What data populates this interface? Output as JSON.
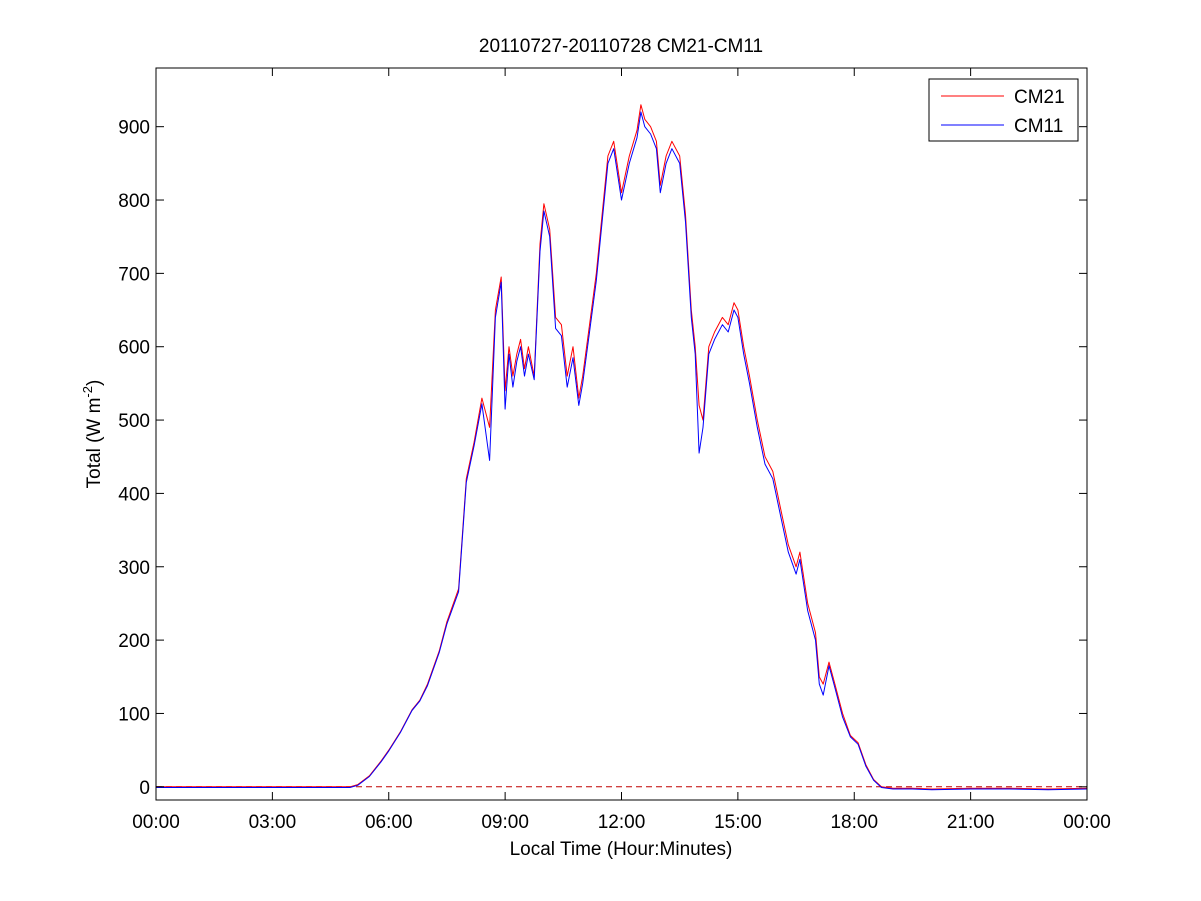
{
  "chart_data": {
    "type": "line",
    "title": "20110727-20110728 CM21-CM11",
    "xlabel": "Local Time (Hour:Minutes)",
    "ylabel_main": "Total (W m",
    "ylabel_sup": "-2",
    "ylabel_close": ")",
    "xlim": [
      0,
      24
    ],
    "ylim": [
      -18,
      980
    ],
    "xticks": [
      {
        "value": 0,
        "label": "00:00"
      },
      {
        "value": 3,
        "label": "03:00"
      },
      {
        "value": 6,
        "label": "06:00"
      },
      {
        "value": 9,
        "label": "09:00"
      },
      {
        "value": 12,
        "label": "12:00"
      },
      {
        "value": 15,
        "label": "15:00"
      },
      {
        "value": 18,
        "label": "18:00"
      },
      {
        "value": 21,
        "label": "21:00"
      },
      {
        "value": 24,
        "label": "00:00"
      }
    ],
    "yticks": [
      {
        "value": 0,
        "label": "0"
      },
      {
        "value": 100,
        "label": "100"
      },
      {
        "value": 200,
        "label": "200"
      },
      {
        "value": 300,
        "label": "300"
      },
      {
        "value": 400,
        "label": "400"
      },
      {
        "value": 500,
        "label": "500"
      },
      {
        "value": 600,
        "label": "600"
      },
      {
        "value": 700,
        "label": "700"
      },
      {
        "value": 800,
        "label": "800"
      },
      {
        "value": 900,
        "label": "900"
      }
    ],
    "grid": false,
    "legend_position": "top-right",
    "reference_line": {
      "y": 0,
      "style": "dashed",
      "color": "#c00000"
    },
    "x": [
      0,
      5.0,
      5.2,
      5.5,
      5.8,
      6.0,
      6.3,
      6.6,
      6.8,
      7.0,
      7.3,
      7.5,
      7.8,
      8.0,
      8.2,
      8.4,
      8.6,
      8.75,
      8.9,
      9.0,
      9.1,
      9.2,
      9.3,
      9.4,
      9.5,
      9.6,
      9.75,
      9.9,
      10.0,
      10.15,
      10.3,
      10.45,
      10.6,
      10.75,
      10.9,
      11.0,
      11.2,
      11.35,
      11.5,
      11.65,
      11.8,
      12.0,
      12.2,
      12.4,
      12.5,
      12.6,
      12.75,
      12.9,
      13.0,
      13.15,
      13.3,
      13.5,
      13.65,
      13.8,
      13.9,
      14.0,
      14.1,
      14.25,
      14.4,
      14.6,
      14.75,
      14.9,
      15.0,
      15.15,
      15.3,
      15.5,
      15.7,
      15.9,
      16.1,
      16.3,
      16.5,
      16.6,
      16.8,
      17.0,
      17.1,
      17.2,
      17.35,
      17.5,
      17.7,
      17.9,
      18.1,
      18.3,
      18.5,
      18.7,
      19.0,
      19.5,
      20.0,
      21.0,
      22.0,
      23.0,
      24.0
    ],
    "series": [
      {
        "name": "CM21",
        "color": "#ff0000",
        "values": [
          0,
          0,
          3,
          15,
          35,
          50,
          75,
          105,
          118,
          140,
          185,
          225,
          270,
          420,
          470,
          530,
          490,
          650,
          695,
          540,
          600,
          560,
          590,
          610,
          570,
          600,
          560,
          740,
          795,
          760,
          640,
          630,
          560,
          600,
          530,
          560,
          640,
          700,
          780,
          860,
          880,
          810,
          860,
          895,
          930,
          910,
          900,
          880,
          820,
          860,
          880,
          860,
          780,
          650,
          600,
          520,
          500,
          600,
          620,
          640,
          630,
          660,
          650,
          600,
          560,
          500,
          450,
          430,
          380,
          330,
          300,
          320,
          250,
          210,
          150,
          140,
          170,
          140,
          100,
          70,
          60,
          30,
          10,
          0,
          -2,
          -2,
          -3,
          -2,
          -2,
          -3,
          -2
        ]
      },
      {
        "name": "CM11",
        "color": "#0000ff",
        "values": [
          -1,
          -1,
          2,
          14,
          34,
          49,
          74,
          104,
          117,
          138,
          183,
          222,
          266,
          415,
          465,
          522,
          445,
          640,
          688,
          515,
          590,
          545,
          580,
          600,
          560,
          590,
          555,
          730,
          785,
          750,
          625,
          615,
          545,
          585,
          520,
          550,
          630,
          690,
          770,
          850,
          870,
          800,
          850,
          885,
          920,
          900,
          890,
          870,
          810,
          850,
          870,
          850,
          770,
          640,
          590,
          455,
          490,
          590,
          610,
          630,
          620,
          650,
          640,
          590,
          550,
          490,
          440,
          420,
          370,
          320,
          290,
          310,
          240,
          200,
          140,
          125,
          165,
          135,
          95,
          68,
          58,
          28,
          9,
          -1,
          -3,
          -3,
          -4,
          -3,
          -3,
          -4,
          -3
        ]
      }
    ]
  }
}
